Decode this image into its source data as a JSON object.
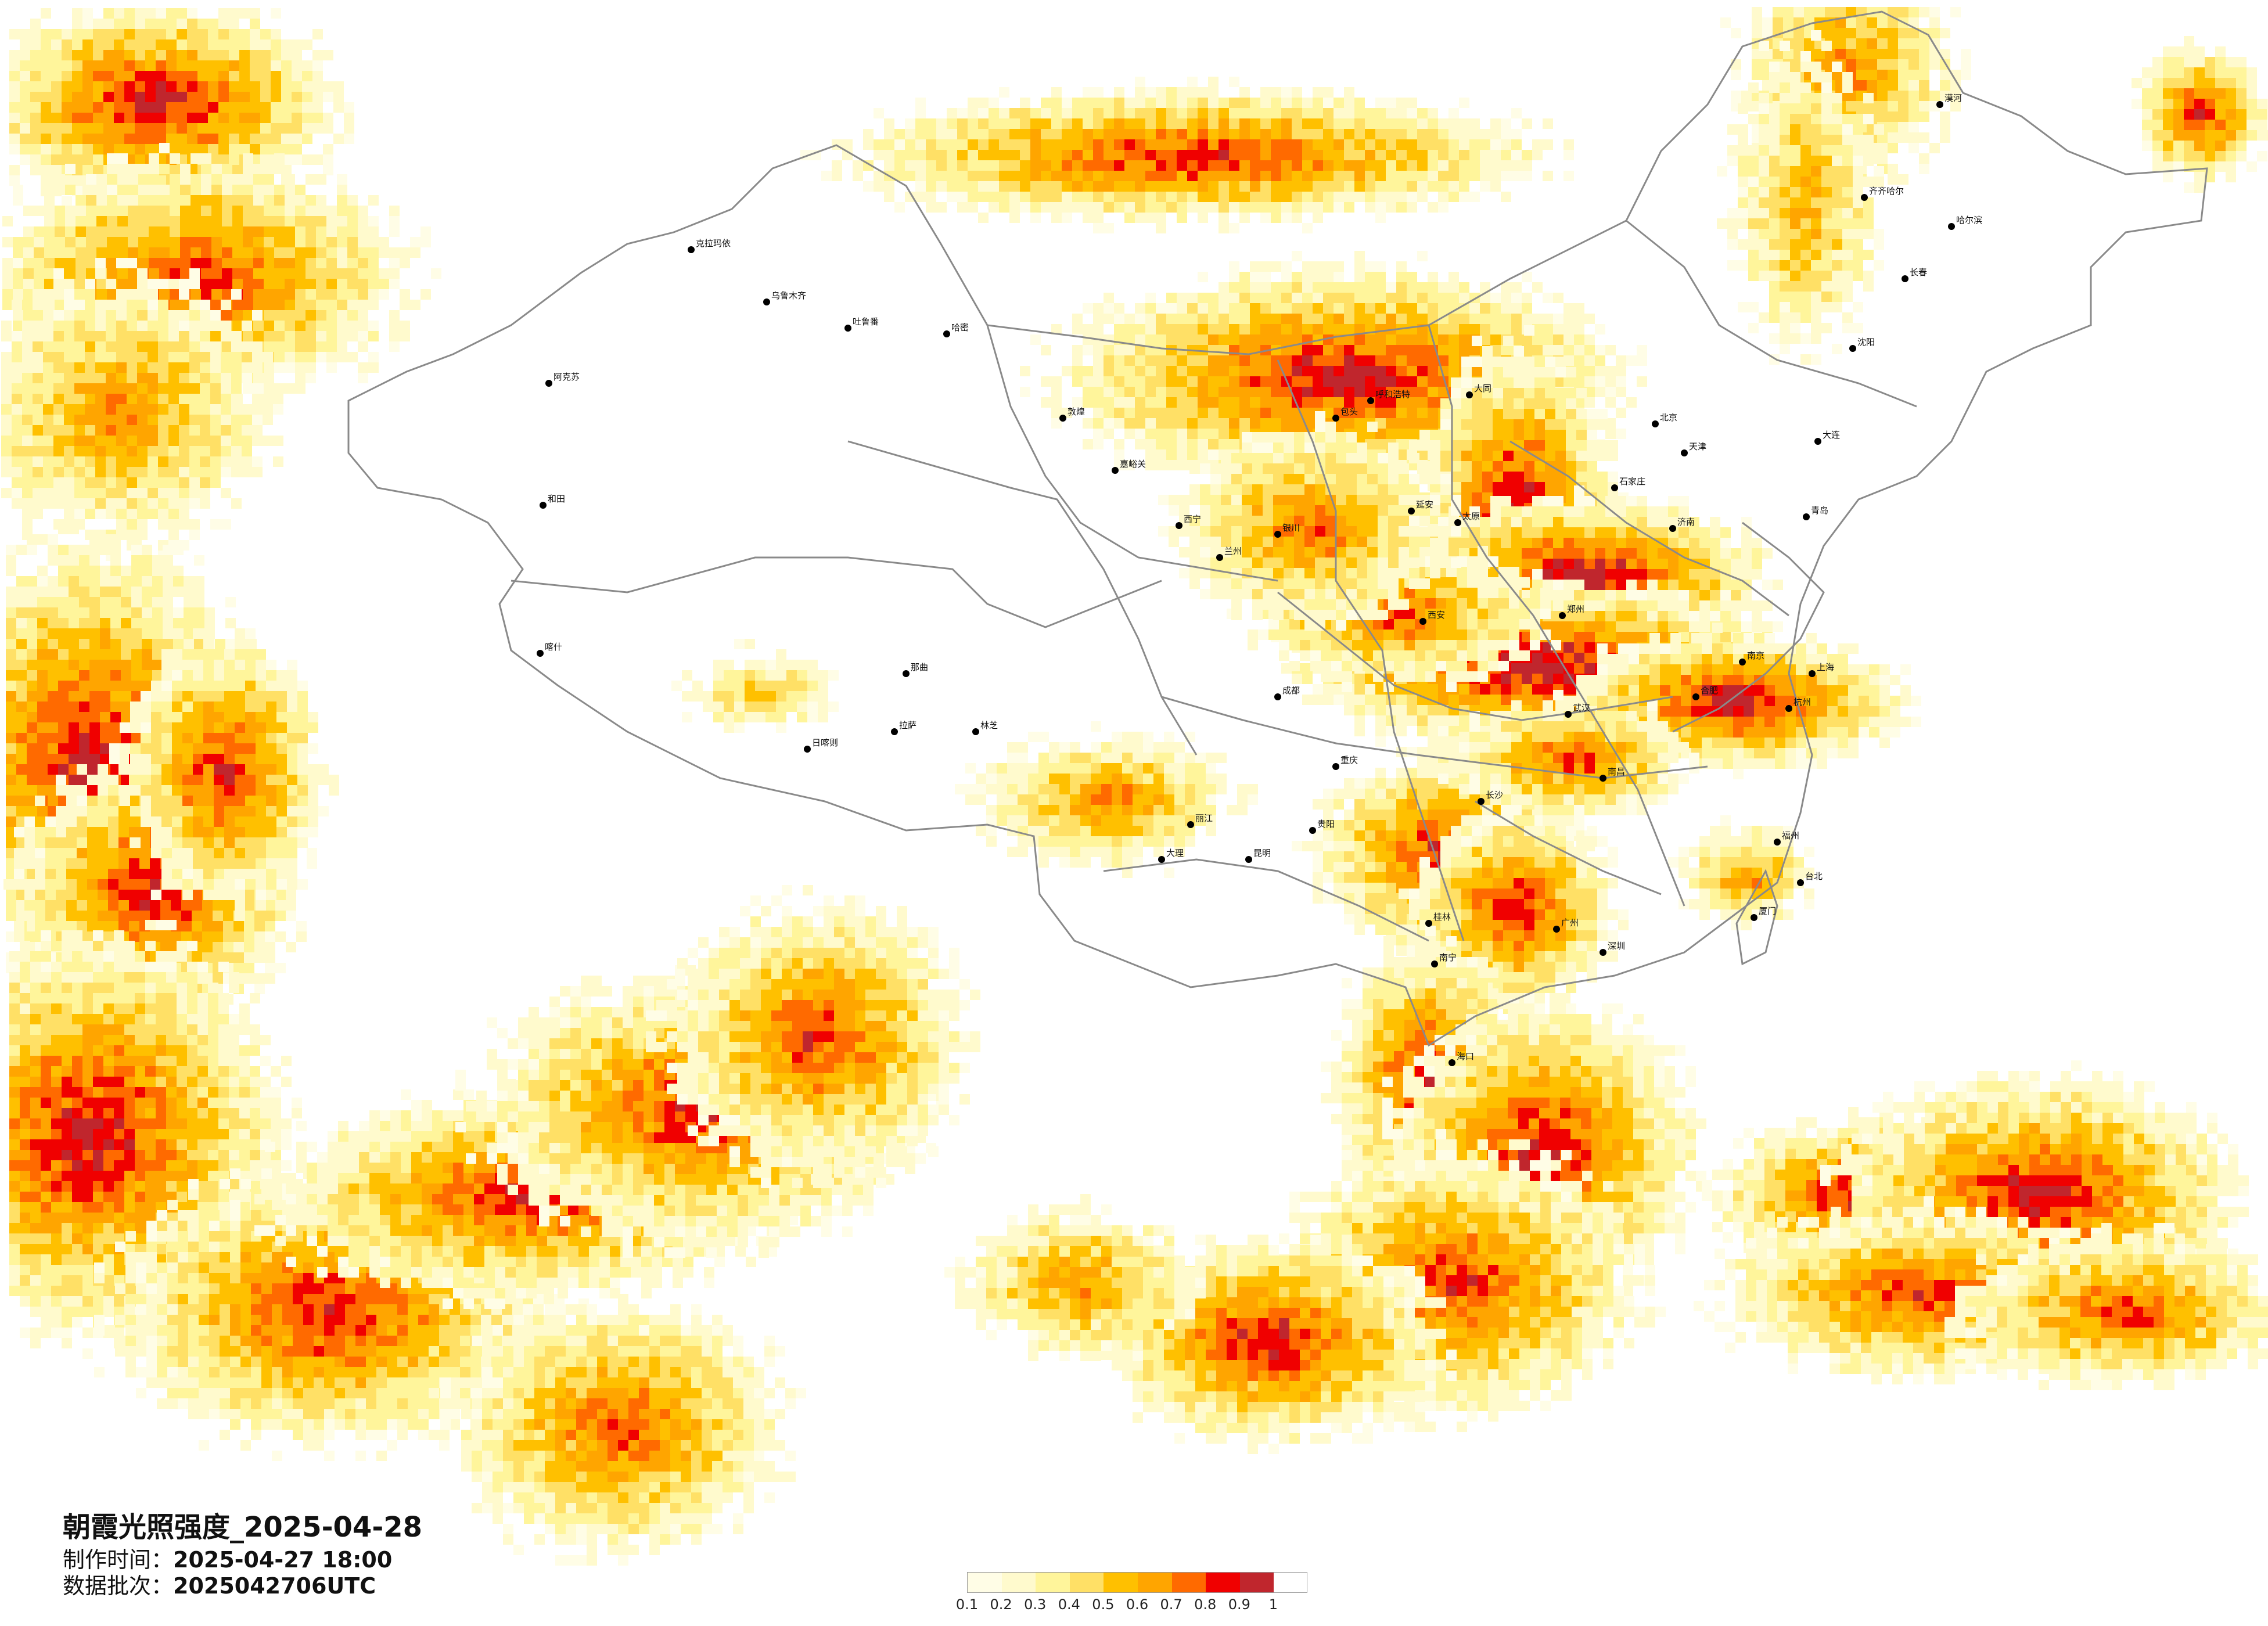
{
  "title": "朝霞光照强度_2025-04-28",
  "made_time_label": "制作时间：",
  "made_time_value": "2025-04-27 18:00",
  "batch_label": "数据批次：",
  "batch_value": "2025042706UTC",
  "legend": {
    "colors": [
      "#fffde6",
      "#fffacd",
      "#fff59b",
      "#ffe066",
      "#ffc000",
      "#ffa500",
      "#ff6a00",
      "#f00000",
      "#c0262d"
    ],
    "ticks": [
      "0.1",
      "0.2",
      "0.3",
      "0.4",
      "0.5",
      "0.6",
      "0.7",
      "0.8",
      "0.9",
      "1"
    ]
  },
  "cities": [
    {
      "name": "乌鲁木齐"
    },
    {
      "name": "克拉玛依"
    },
    {
      "name": "阿克苏"
    },
    {
      "name": "和田"
    },
    {
      "name": "喀什"
    },
    {
      "name": "哈密"
    },
    {
      "name": "吐鲁番"
    },
    {
      "name": "敦煌"
    },
    {
      "name": "嘉峪关"
    },
    {
      "name": "西宁"
    },
    {
      "name": "兰州"
    },
    {
      "name": "银川"
    },
    {
      "name": "呼和浩特"
    },
    {
      "name": "包头"
    },
    {
      "name": "北京"
    },
    {
      "name": "天津"
    },
    {
      "name": "石家庄"
    },
    {
      "name": "太原"
    },
    {
      "name": "西安"
    },
    {
      "name": "郑州"
    },
    {
      "name": "济南"
    },
    {
      "name": "青岛"
    },
    {
      "name": "南京"
    },
    {
      "name": "上海"
    },
    {
      "name": "杭州"
    },
    {
      "name": "合肥"
    },
    {
      "name": "武汉"
    },
    {
      "name": "长沙"
    },
    {
      "name": "南昌"
    },
    {
      "name": "福州"
    },
    {
      "name": "厦门"
    },
    {
      "name": "广州"
    },
    {
      "name": "深圳"
    },
    {
      "name": "南宁"
    },
    {
      "name": "海口"
    },
    {
      "name": "贵阳"
    },
    {
      "name": "昆明"
    },
    {
      "name": "成都"
    },
    {
      "name": "重庆"
    },
    {
      "name": "拉萨"
    },
    {
      "name": "日喀则"
    },
    {
      "name": "那曲"
    },
    {
      "name": "林芝"
    },
    {
      "name": "沈阳"
    },
    {
      "name": "长春"
    },
    {
      "name": "哈尔滨"
    },
    {
      "name": "大连"
    },
    {
      "name": "齐齐哈尔"
    },
    {
      "name": "漠河"
    },
    {
      "name": "台北"
    },
    {
      "name": "桂林"
    },
    {
      "name": "大理"
    },
    {
      "name": "丽江"
    },
    {
      "name": "延安"
    },
    {
      "name": "大同"
    }
  ]
}
